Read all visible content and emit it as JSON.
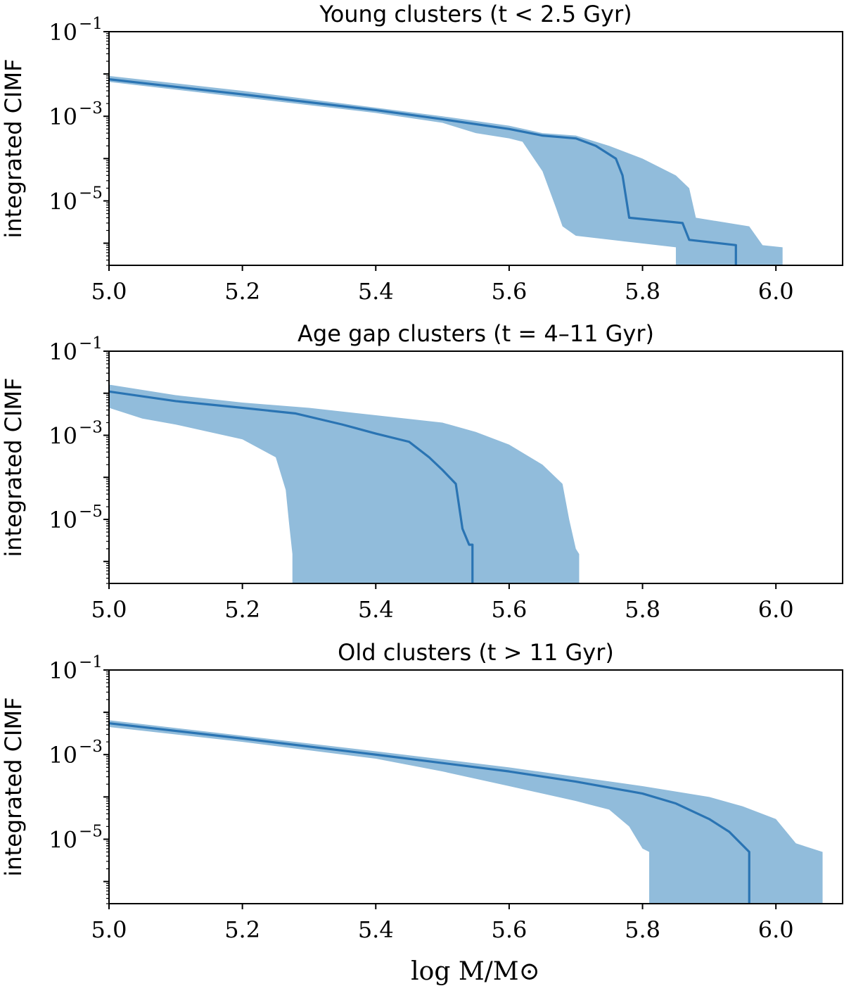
{
  "colors": {
    "line": "#2a74b3",
    "band": "#91bcdb",
    "axes": "#000000"
  },
  "xlabel": "log M/M⊙",
  "chart_data": [
    {
      "type": "area",
      "title": "Young clusters (t < 2.5 Gyr)",
      "ylabel": "integrated CIMF",
      "yscale": "log",
      "xlim": [
        5.0,
        6.1
      ],
      "ylim": [
        3e-07,
        0.1
      ],
      "xticks": [
        "5.0",
        "5.2",
        "5.4",
        "5.6",
        "5.8",
        "6.0"
      ],
      "yticks": [
        {
          "base": "10",
          "exp": "−1",
          "value": 0.1
        },
        {
          "base": "10",
          "exp": "−3",
          "value": 0.001
        },
        {
          "base": "10",
          "exp": "−5",
          "value": 1e-05
        }
      ],
      "median": {
        "x": [
          5.0,
          5.2,
          5.4,
          5.5,
          5.6,
          5.65,
          5.7,
          5.73,
          5.76,
          5.77,
          5.78,
          5.86,
          5.87,
          5.94,
          5.94
        ],
        "y": [
          0.0075,
          0.0033,
          0.0014,
          0.00085,
          0.0005,
          0.00035,
          0.0003,
          0.0002,
          0.0001,
          4e-05,
          4e-06,
          3e-06,
          1.2e-06,
          9e-07,
          3e-07
        ]
      },
      "upper": {
        "x": [
          5.0,
          5.2,
          5.4,
          5.5,
          5.6,
          5.65,
          5.7,
          5.75,
          5.8,
          5.85,
          5.87,
          5.88,
          5.96,
          5.98,
          6.01,
          6.01
        ],
        "y": [
          0.009,
          0.004,
          0.0016,
          0.001,
          0.0006,
          0.0004,
          0.00035,
          0.0002,
          0.0001,
          4e-05,
          2e-05,
          4e-06,
          2.5e-06,
          9e-07,
          8e-07,
          3e-07
        ]
      },
      "lower": {
        "x": [
          5.0,
          5.2,
          5.4,
          5.5,
          5.55,
          5.6,
          5.62,
          5.65,
          5.67,
          5.68,
          5.7,
          5.85,
          5.85
        ],
        "y": [
          0.0065,
          0.0028,
          0.0012,
          0.0007,
          0.0004,
          0.0003,
          0.00025,
          5e-05,
          7e-06,
          2.5e-06,
          1.5e-06,
          8e-07,
          3e-07
        ]
      }
    },
    {
      "type": "area",
      "title": "Age gap clusters (t = 4–11 Gyr)",
      "ylabel": "integrated CIMF",
      "yscale": "log",
      "xlim": [
        5.0,
        6.1
      ],
      "ylim": [
        3e-07,
        0.1
      ],
      "xticks": [
        "5.0",
        "5.2",
        "5.4",
        "5.6",
        "5.8",
        "6.0"
      ],
      "yticks": [
        {
          "base": "10",
          "exp": "−1",
          "value": 0.1
        },
        {
          "base": "10",
          "exp": "−3",
          "value": 0.001
        },
        {
          "base": "10",
          "exp": "−5",
          "value": 1e-05
        }
      ],
      "median": {
        "x": [
          5.0,
          5.1,
          5.2,
          5.28,
          5.35,
          5.4,
          5.45,
          5.48,
          5.5,
          5.52,
          5.53,
          5.54,
          5.545,
          5.545
        ],
        "y": [
          0.011,
          0.0065,
          0.0045,
          0.0033,
          0.0018,
          0.0011,
          0.0007,
          0.0003,
          0.00015,
          7e-05,
          6e-06,
          2.5e-06,
          2.5e-06,
          3e-07
        ]
      },
      "upper": {
        "x": [
          5.0,
          5.1,
          5.2,
          5.3,
          5.4,
          5.5,
          5.55,
          5.6,
          5.65,
          5.68,
          5.69,
          5.7,
          5.705,
          5.705
        ],
        "y": [
          0.016,
          0.009,
          0.006,
          0.0045,
          0.003,
          0.002,
          0.0012,
          0.0006,
          0.0002,
          7e-05,
          1e-05,
          2e-06,
          1.5e-06,
          3e-07
        ]
      },
      "lower": {
        "x": [
          5.0,
          5.05,
          5.1,
          5.15,
          5.2,
          5.25,
          5.265,
          5.27,
          5.275,
          5.275
        ],
        "y": [
          0.0045,
          0.0025,
          0.0018,
          0.0012,
          0.0008,
          0.0003,
          5e-05,
          8e-06,
          1.5e-06,
          3e-07
        ]
      }
    },
    {
      "type": "area",
      "title": "Old clusters (t > 11 Gyr)",
      "ylabel": "integrated CIMF",
      "yscale": "log",
      "xlim": [
        5.0,
        6.1
      ],
      "ylim": [
        3e-07,
        0.1
      ],
      "xticks": [
        "5.0",
        "5.2",
        "5.4",
        "5.6",
        "5.8",
        "6.0"
      ],
      "yticks": [
        {
          "base": "10",
          "exp": "−1",
          "value": 0.1
        },
        {
          "base": "10",
          "exp": "−3",
          "value": 0.001
        },
        {
          "base": "10",
          "exp": "−5",
          "value": 1e-05
        }
      ],
      "median": {
        "x": [
          5.0,
          5.2,
          5.4,
          5.6,
          5.7,
          5.8,
          5.85,
          5.9,
          5.93,
          5.96,
          5.96
        ],
        "y": [
          0.0055,
          0.0024,
          0.001,
          0.0004,
          0.00023,
          0.00012,
          7e-05,
          3e-05,
          1.5e-05,
          5e-06,
          3e-07
        ]
      },
      "upper": {
        "x": [
          5.0,
          5.2,
          5.4,
          5.6,
          5.7,
          5.8,
          5.9,
          5.95,
          6.0,
          6.03,
          6.07,
          6.07
        ],
        "y": [
          0.0065,
          0.0028,
          0.0012,
          0.0005,
          0.0003,
          0.00018,
          0.0001,
          6e-05,
          3e-05,
          8e-06,
          5e-06,
          3e-07
        ]
      },
      "lower": {
        "x": [
          5.0,
          5.2,
          5.4,
          5.5,
          5.6,
          5.7,
          5.75,
          5.78,
          5.8,
          5.81,
          5.81
        ],
        "y": [
          0.0045,
          0.002,
          0.0008,
          0.0004,
          0.00018,
          8e-05,
          5e-05,
          2e-05,
          6e-06,
          5e-06,
          3e-07
        ]
      }
    }
  ]
}
